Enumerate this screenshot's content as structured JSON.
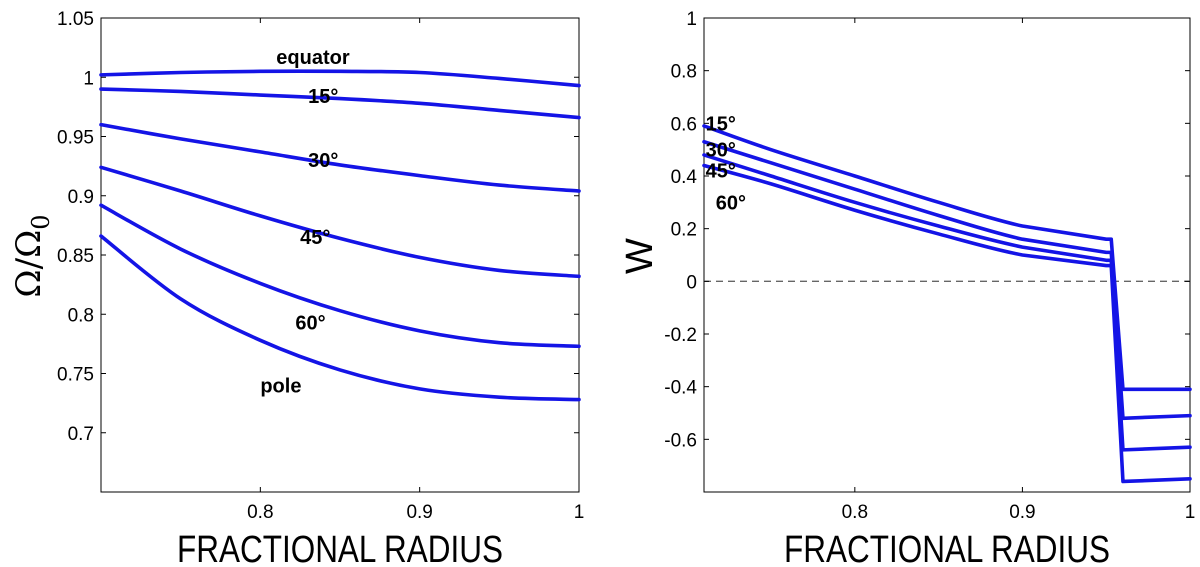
{
  "colors": {
    "series": "#1414e6",
    "axis": "#000000",
    "zero_line": "#666666"
  },
  "chart_data": [
    {
      "type": "line",
      "xlabel": "FRACTIONAL RADIUS",
      "ylabel": "Ω/Ω",
      "ylabel_subscript": "0",
      "xlim": [
        0.7,
        1.0
      ],
      "ylim": [
        0.65,
        1.05
      ],
      "xticks": [
        0.8,
        0.9,
        1
      ],
      "xtick_labels": [
        "0.8",
        "0.9",
        "1"
      ],
      "yticks": [
        0.7,
        0.75,
        0.8,
        0.85,
        0.9,
        0.95,
        1,
        1.05
      ],
      "ytick_labels": [
        "0.7",
        "0.75",
        "0.8",
        "0.85",
        "0.9",
        "0.95",
        "1",
        "1.05"
      ],
      "grid": false,
      "series": [
        {
          "name": "equator",
          "x": [
            0.7,
            0.75,
            0.8,
            0.85,
            0.9,
            0.95,
            1.0
          ],
          "values": [
            1.002,
            1.004,
            1.005,
            1.005,
            1.004,
            0.999,
            0.993
          ]
        },
        {
          "name": "15°",
          "x": [
            0.7,
            0.75,
            0.8,
            0.85,
            0.9,
            0.95,
            1.0
          ],
          "values": [
            0.99,
            0.988,
            0.985,
            0.982,
            0.978,
            0.972,
            0.966
          ]
        },
        {
          "name": "30°",
          "x": [
            0.7,
            0.75,
            0.8,
            0.85,
            0.9,
            0.95,
            1.0
          ],
          "values": [
            0.96,
            0.948,
            0.937,
            0.926,
            0.917,
            0.909,
            0.904
          ]
        },
        {
          "name": "45°",
          "x": [
            0.7,
            0.75,
            0.8,
            0.85,
            0.9,
            0.95,
            1.0
          ],
          "values": [
            0.924,
            0.904,
            0.883,
            0.864,
            0.848,
            0.837,
            0.832
          ]
        },
        {
          "name": "60°",
          "x": [
            0.7,
            0.75,
            0.8,
            0.85,
            0.9,
            0.95,
            1.0
          ],
          "values": [
            0.892,
            0.855,
            0.826,
            0.803,
            0.786,
            0.776,
            0.773
          ]
        },
        {
          "name": "pole",
          "x": [
            0.7,
            0.75,
            0.8,
            0.85,
            0.9,
            0.95,
            1.0
          ],
          "values": [
            0.866,
            0.813,
            0.778,
            0.753,
            0.737,
            0.73,
            0.728
          ]
        }
      ],
      "annotations": [
        {
          "text": "equator",
          "x": 0.81,
          "y": 1.017
        },
        {
          "text": "15°",
          "x": 0.83,
          "y": 0.984
        },
        {
          "text": "30°",
          "x": 0.83,
          "y": 0.93
        },
        {
          "text": "45°",
          "x": 0.825,
          "y": 0.865
        },
        {
          "text": "60°",
          "x": 0.822,
          "y": 0.793
        },
        {
          "text": "pole",
          "x": 0.8,
          "y": 0.74
        }
      ]
    },
    {
      "type": "line",
      "xlabel": "FRACTIONAL RADIUS",
      "ylabel": "W",
      "xlim": [
        0.71,
        1.0
      ],
      "ylim": [
        -0.8,
        1.0
      ],
      "xticks": [
        0.8,
        0.9,
        1
      ],
      "xtick_labels": [
        "0.8",
        "0.9",
        "1"
      ],
      "yticks": [
        -0.6,
        -0.4,
        -0.2,
        0,
        0.2,
        0.4,
        0.6,
        0.8,
        1
      ],
      "ytick_labels": [
        "-0.6",
        "-0.4",
        "-0.2",
        "0",
        "0.2",
        "0.4",
        "0.6",
        "0.8",
        "1"
      ],
      "grid": false,
      "zero_line": true,
      "series": [
        {
          "name": "15°",
          "x": [
            0.71,
            0.75,
            0.8,
            0.85,
            0.9,
            0.95,
            0.953,
            0.96,
            1.0
          ],
          "values": [
            0.59,
            0.5,
            0.4,
            0.3,
            0.21,
            0.16,
            0.16,
            -0.41,
            -0.41
          ]
        },
        {
          "name": "30°",
          "x": [
            0.71,
            0.75,
            0.8,
            0.85,
            0.9,
            0.95,
            0.953,
            0.96,
            1.0
          ],
          "values": [
            0.53,
            0.45,
            0.35,
            0.25,
            0.16,
            0.11,
            0.11,
            -0.52,
            -0.51
          ]
        },
        {
          "name": "45°",
          "x": [
            0.71,
            0.75,
            0.8,
            0.85,
            0.9,
            0.95,
            0.953,
            0.96,
            1.0
          ],
          "values": [
            0.48,
            0.4,
            0.3,
            0.21,
            0.13,
            0.08,
            0.08,
            -0.64,
            -0.63
          ]
        },
        {
          "name": "60°",
          "x": [
            0.71,
            0.75,
            0.8,
            0.85,
            0.9,
            0.95,
            0.953,
            0.96,
            1.0
          ],
          "values": [
            0.44,
            0.37,
            0.27,
            0.18,
            0.1,
            0.06,
            0.06,
            -0.76,
            -0.75
          ]
        }
      ],
      "annotations": [
        {
          "text": "15°",
          "x": 0.711,
          "y": 0.6
        },
        {
          "text": "30°",
          "x": 0.711,
          "y": 0.5
        },
        {
          "text": "45°",
          "x": 0.711,
          "y": 0.42
        },
        {
          "text": "60°",
          "x": 0.717,
          "y": 0.3
        }
      ]
    }
  ]
}
